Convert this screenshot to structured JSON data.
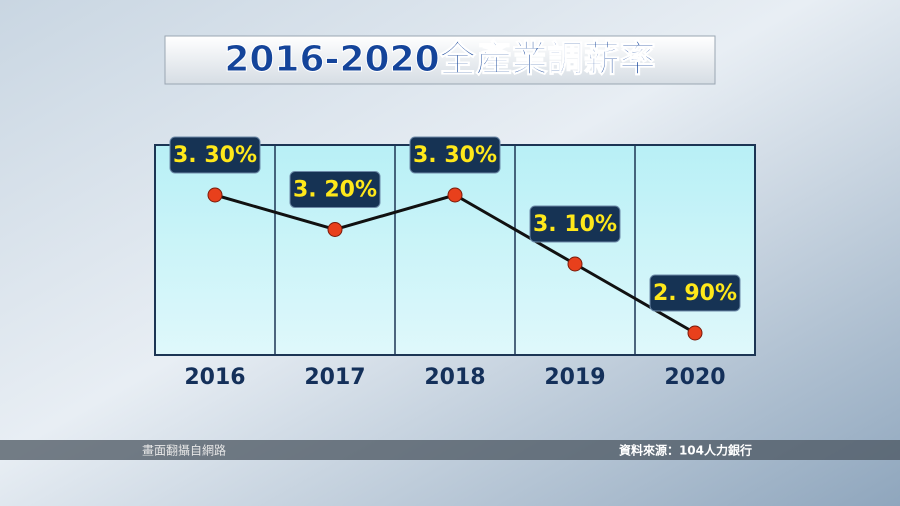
{
  "chart_data": {
    "type": "line",
    "title": "2016-2020全產業調薪率",
    "categories": [
      "2016",
      "2017",
      "2018",
      "2019",
      "2020"
    ],
    "values": [
      3.3,
      3.2,
      3.3,
      3.1,
      2.9
    ],
    "value_labels": [
      "3. 30%",
      "3. 20%",
      "3. 30%",
      "3. 10%",
      "2. 90%"
    ],
    "color": "#111111",
    "marker_color": "#e8401c",
    "footer_left": "畫面翻攝自網路",
    "footer_right": "資料來源：104人力銀行"
  }
}
